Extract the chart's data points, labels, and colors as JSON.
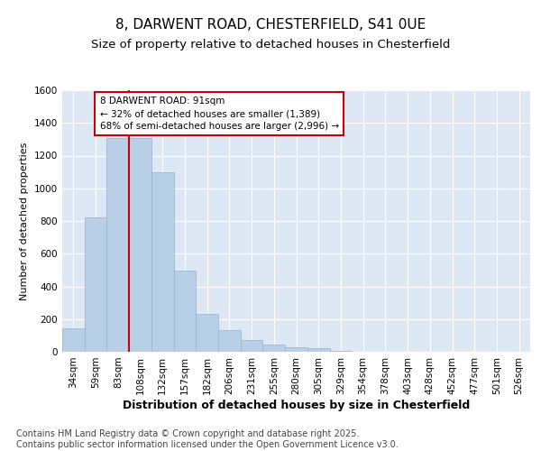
{
  "title_line1": "8, DARWENT ROAD, CHESTERFIELD, S41 0UE",
  "title_line2": "Size of property relative to detached houses in Chesterfield",
  "xlabel": "Distribution of detached houses by size in Chesterfield",
  "ylabel": "Number of detached properties",
  "categories": [
    "34sqm",
    "59sqm",
    "83sqm",
    "108sqm",
    "132sqm",
    "157sqm",
    "182sqm",
    "206sqm",
    "231sqm",
    "255sqm",
    "280sqm",
    "305sqm",
    "329sqm",
    "354sqm",
    "378sqm",
    "403sqm",
    "428sqm",
    "452sqm",
    "477sqm",
    "501sqm",
    "526sqm"
  ],
  "values": [
    145,
    820,
    1305,
    1305,
    1100,
    495,
    230,
    130,
    70,
    45,
    30,
    20,
    3,
    0,
    0,
    0,
    0,
    0,
    0,
    0,
    0
  ],
  "bar_color": "#b8cfe8",
  "bar_edge_color": "#9ab0cc",
  "background_color": "#dde8f4",
  "grid_color": "#ffffff",
  "vline_x": 2.5,
  "vline_color": "#cc0000",
  "annotation_text": "8 DARWENT ROAD: 91sqm\n← 32% of detached houses are smaller (1,389)\n68% of semi-detached houses are larger (2,996) →",
  "annotation_box_color": "#ffffff",
  "annotation_box_edge": "#cc0000",
  "ylim": [
    0,
    1600
  ],
  "yticks": [
    0,
    200,
    400,
    600,
    800,
    1000,
    1200,
    1400,
    1600
  ],
  "footer_text": "Contains HM Land Registry data © Crown copyright and database right 2025.\nContains public sector information licensed under the Open Government Licence v3.0.",
  "title1_fontsize": 11,
  "title2_fontsize": 9.5,
  "xlabel_fontsize": 9,
  "ylabel_fontsize": 8,
  "tick_fontsize": 7.5,
  "annotation_fontsize": 7.5,
  "footer_fontsize": 7
}
